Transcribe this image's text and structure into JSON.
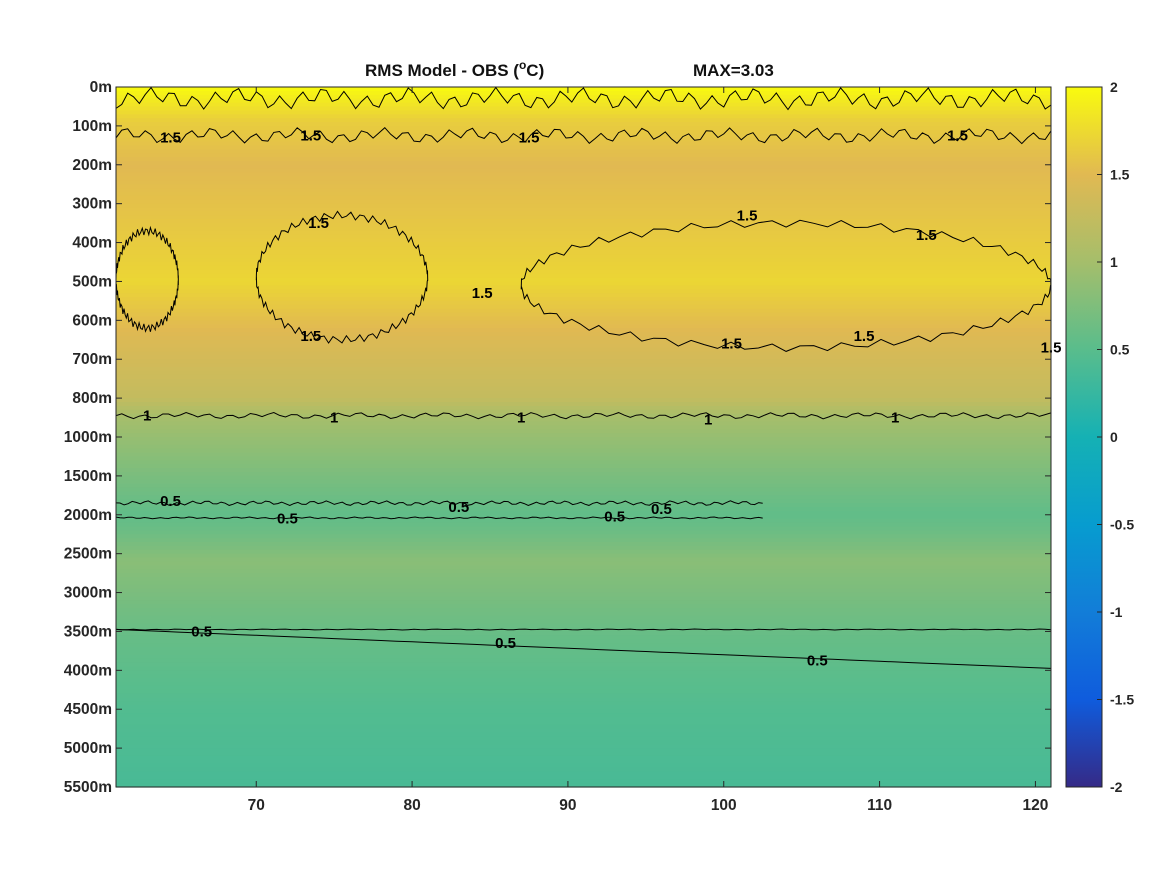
{
  "chart_data": {
    "type": "heatmap",
    "title": "RMS Model - OBS (",
    "title_unit_sup": "o",
    "title_unit_tail": "C)",
    "max_label": "MAX=3.03",
    "xlim": [
      61,
      121
    ],
    "x_ticks": [
      70,
      80,
      90,
      100,
      110,
      120
    ],
    "y_tick_labels": [
      "0m",
      "100m",
      "200m",
      "300m",
      "400m",
      "500m",
      "600m",
      "700m",
      "800m",
      "1000m",
      "1500m",
      "2000m",
      "2500m",
      "3000m",
      "3500m",
      "4000m",
      "4500m",
      "5000m",
      "5500m"
    ],
    "colorbar": {
      "range": [
        -2,
        2
      ],
      "ticks": [
        "2",
        "1.5",
        "1",
        "0.5",
        "0",
        "-0.5",
        "-1",
        "-1.5",
        "-2"
      ],
      "colormap": "parula"
    },
    "depth_profile": [
      {
        "level": 0.0,
        "value": 2.0
      },
      {
        "level": 0.9,
        "value": 1.65
      },
      {
        "level": 2.0,
        "value": 1.5
      },
      {
        "level": 3.5,
        "value": 1.6
      },
      {
        "level": 5.0,
        "value": 1.72
      },
      {
        "level": 6.5,
        "value": 1.45
      },
      {
        "level": 8.0,
        "value": 1.25
      },
      {
        "level": 8.5,
        "value": 1.0
      },
      {
        "level": 10.0,
        "value": 0.72
      },
      {
        "level": 11.0,
        "value": 0.55
      },
      {
        "level": 11.4,
        "value": 0.62
      },
      {
        "level": 12.2,
        "value": 0.82
      },
      {
        "level": 14.0,
        "value": 0.6
      },
      {
        "level": 16.0,
        "value": 0.45
      },
      {
        "level": 18.0,
        "value": 0.38
      }
    ],
    "contours": [
      {
        "label": "2",
        "level": 2.0
      },
      {
        "label": "1.5",
        "level": 1.5
      },
      {
        "label": "1",
        "level": 1.0
      },
      {
        "label": "0.5",
        "level": 0.5
      }
    ],
    "contour_labels_shown": [
      {
        "text": "1.5",
        "x": 64.5,
        "level": 1.3
      },
      {
        "text": "1.5",
        "x": 73.5,
        "level": 1.25
      },
      {
        "text": "1.5",
        "x": 87.5,
        "level": 1.3
      },
      {
        "text": "1.5",
        "x": 115,
        "level": 1.25
      },
      {
        "text": "1.5",
        "x": 74,
        "level": 3.5
      },
      {
        "text": "1.5",
        "x": 101.5,
        "level": 3.3
      },
      {
        "text": "1.5",
        "x": 113,
        "level": 3.8
      },
      {
        "text": "1.5",
        "x": 84.5,
        "level": 5.3
      },
      {
        "text": "1.5",
        "x": 73.5,
        "level": 6.4
      },
      {
        "text": "1.5",
        "x": 100.5,
        "level": 6.6
      },
      {
        "text": "1.5",
        "x": 109,
        "level": 6.4
      },
      {
        "text": "1.5",
        "x": 121,
        "level": 6.7
      },
      {
        "text": "1",
        "x": 63,
        "level": 8.45
      },
      {
        "text": "1",
        "x": 75,
        "level": 8.5
      },
      {
        "text": "1",
        "x": 87,
        "level": 8.5
      },
      {
        "text": "1",
        "x": 99,
        "level": 8.55
      },
      {
        "text": "1",
        "x": 111,
        "level": 8.5
      },
      {
        "text": "0.5",
        "x": 64.5,
        "level": 10.65
      },
      {
        "text": "0.5",
        "x": 83,
        "level": 10.8
      },
      {
        "text": "0.5",
        "x": 96,
        "level": 10.85
      },
      {
        "text": "0.5",
        "x": 72,
        "level": 11.1
      },
      {
        "text": "0.5",
        "x": 93,
        "level": 11.05
      },
      {
        "text": "0.5",
        "x": 66.5,
        "level": 14.0
      },
      {
        "text": "0.5",
        "x": 86,
        "level": 14.3
      },
      {
        "text": "0.5",
        "x": 106,
        "level": 14.75
      }
    ]
  }
}
